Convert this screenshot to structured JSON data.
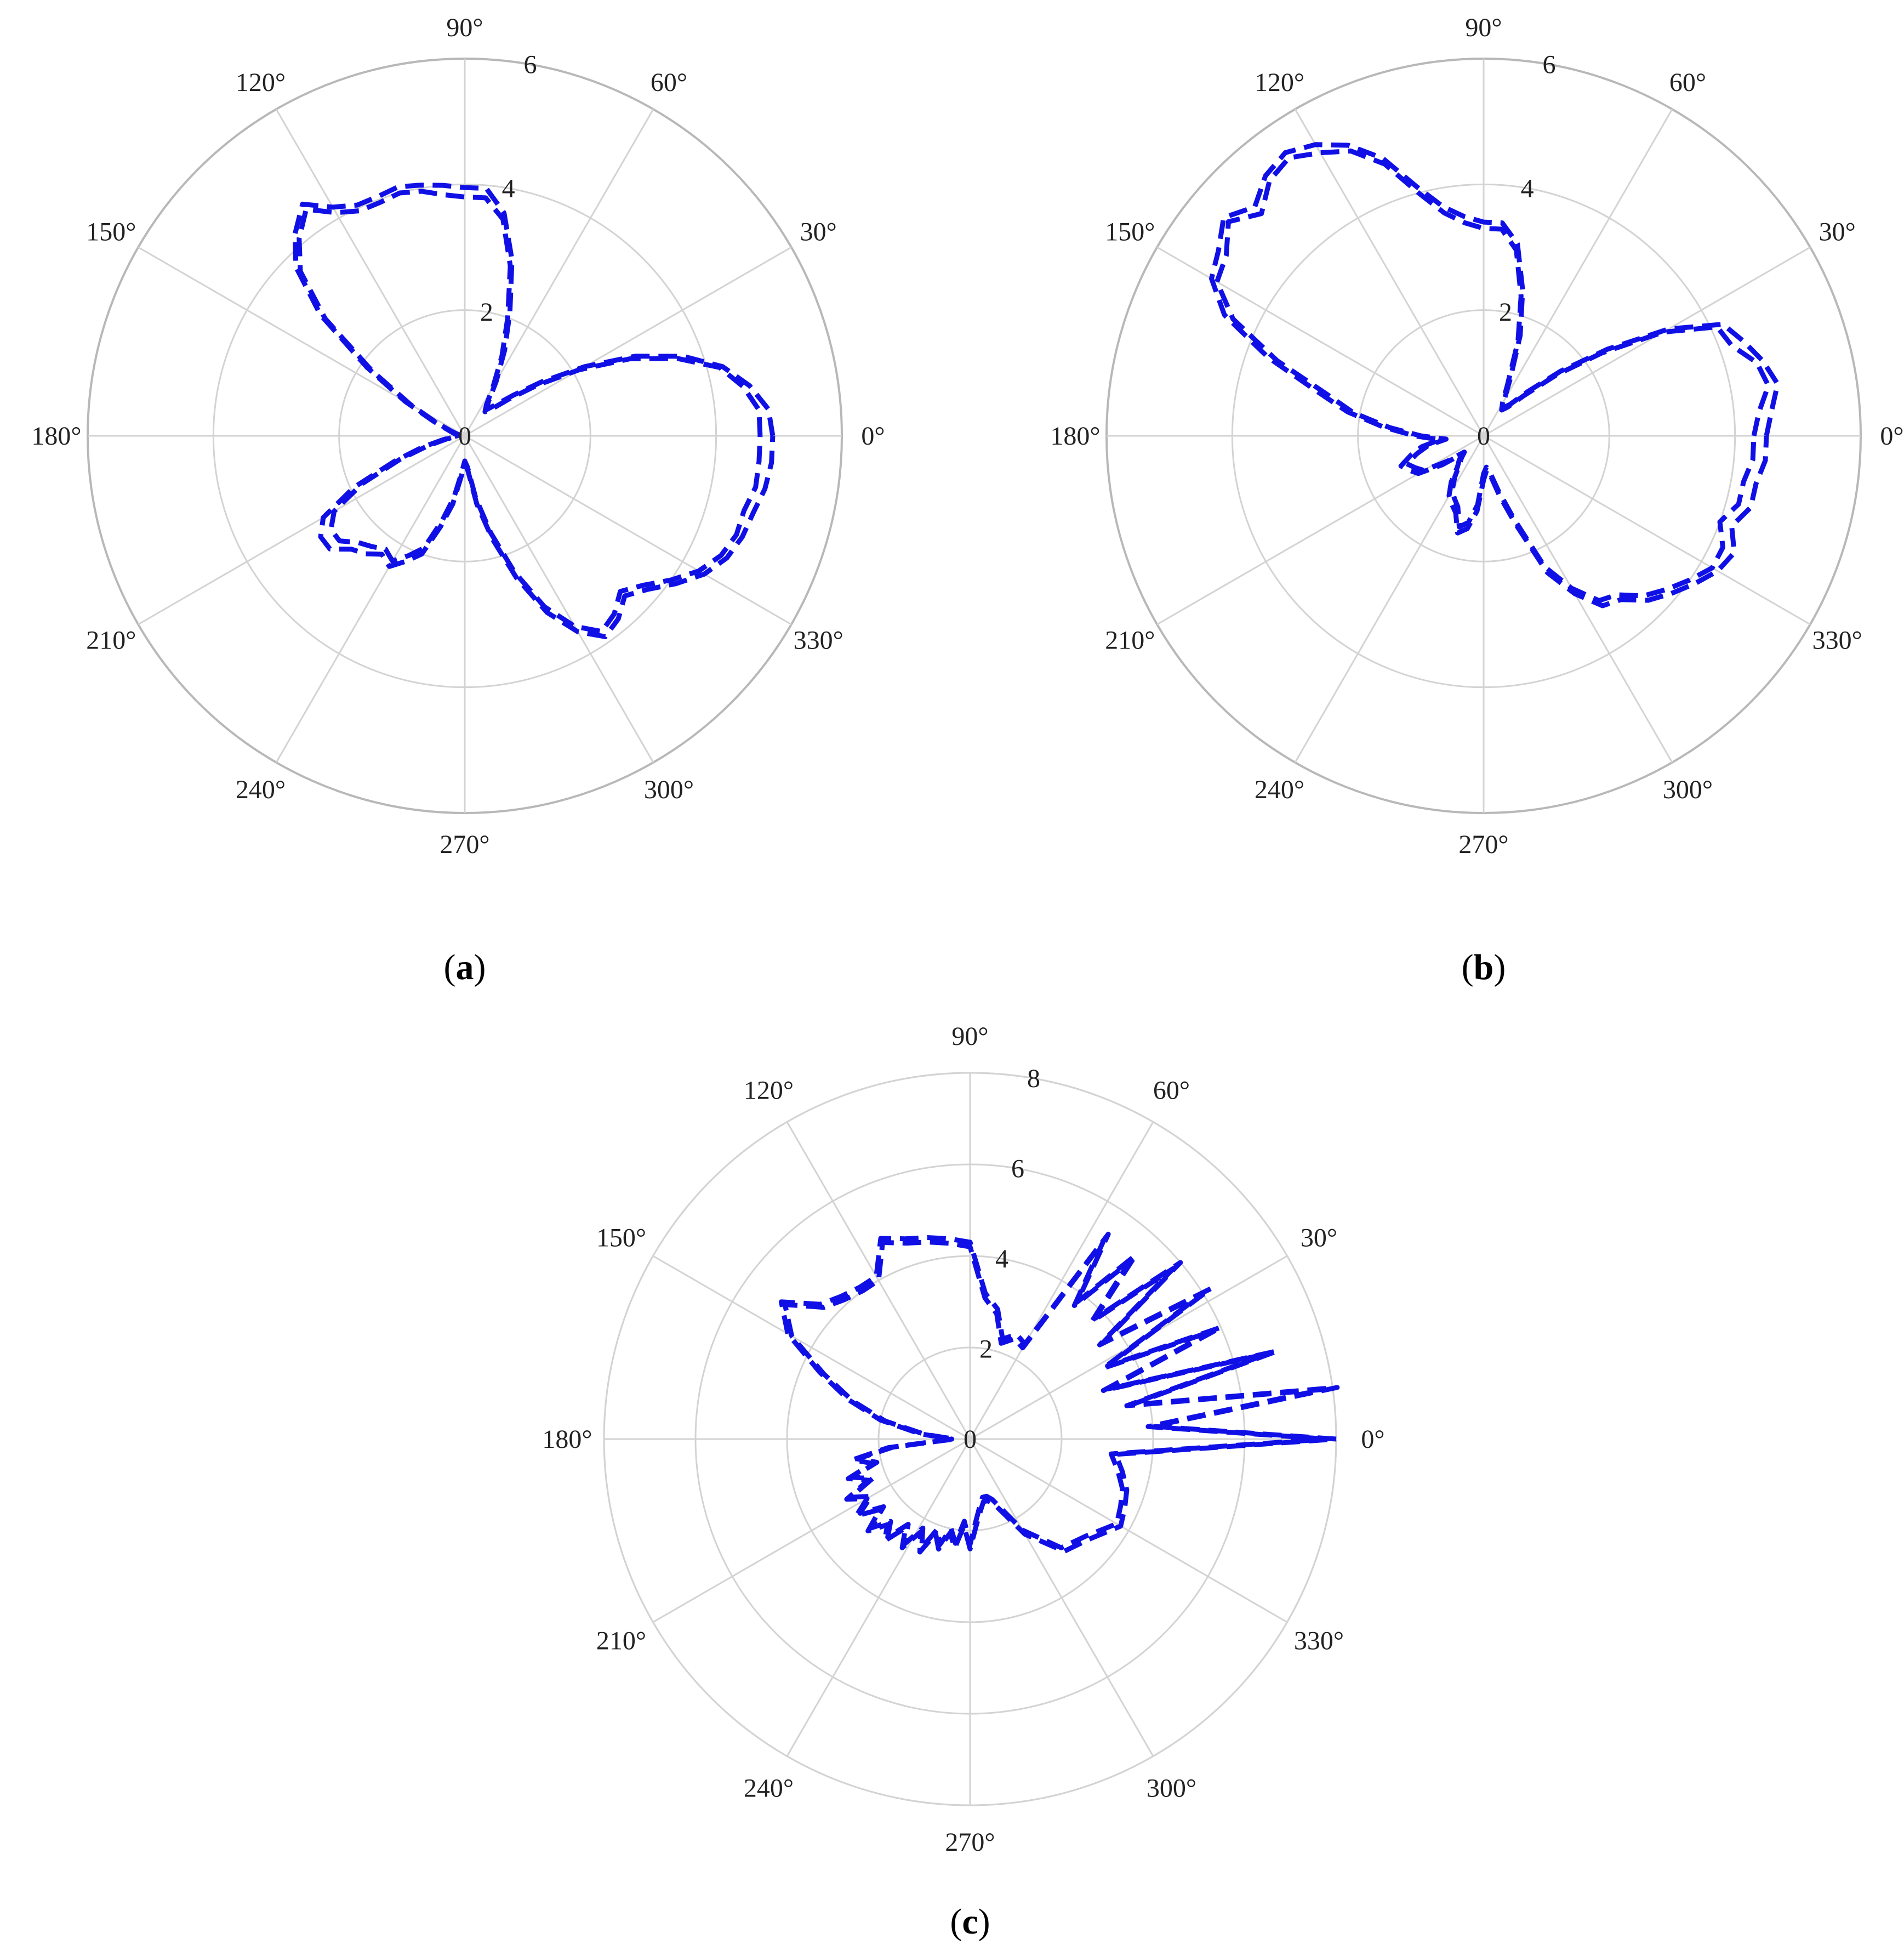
{
  "colors": {
    "series": "#1010e6",
    "grid": "#d3d3d3",
    "outer": "#b8b8b8",
    "text": "#222222"
  },
  "chart_data": [
    {
      "type": "polar-line",
      "panel": "a",
      "caption_open": "(",
      "caption_letter": "a",
      "caption_close": ")",
      "theta_tick_labels": [
        "0°",
        "30°",
        "60°",
        "90°",
        "120°",
        "150°",
        "180°",
        "210°",
        "240°",
        "270°",
        "300°",
        "330°"
      ],
      "r_tick_labels": [
        "0",
        "2",
        "4",
        "6"
      ],
      "rlim": [
        0,
        6
      ],
      "grid": true,
      "series": [
        {
          "theta_deg": [
            0,
            5,
            10,
            15,
            20,
            25,
            30,
            35,
            40,
            45,
            50,
            55,
            60,
            65,
            70,
            75,
            80,
            85,
            90,
            95,
            100,
            105,
            110,
            115,
            120,
            125,
            130,
            135,
            140,
            145,
            150,
            155,
            160,
            165,
            170,
            175,
            180,
            185,
            190,
            195,
            200,
            205,
            210,
            215,
            220,
            225,
            230,
            235,
            240,
            245,
            250,
            255,
            260,
            265,
            270,
            275,
            280,
            285,
            290,
            295,
            300,
            305,
            310,
            315,
            320,
            325,
            330,
            335,
            340,
            345,
            350,
            355,
            360
          ],
          "r": [
            4.7,
            4.7,
            4.5,
            4.2,
            3.6,
            2.9,
            2.1,
            1.4,
            0.9,
            0.6,
            0.5,
            0.6,
            0.9,
            1.4,
            2.0,
            2.8,
            3.5,
            3.8,
            3.8,
            3.85,
            3.95,
            4.0,
            3.95,
            3.95,
            4.1,
            4.4,
            4.1,
            3.7,
            2.9,
            1.8,
            1.0,
            0.5,
            0.25,
            0.15,
            0.1,
            0.1,
            0.1,
            0.15,
            0.3,
            0.6,
            1.1,
            1.8,
            2.4,
            2.6,
            2.6,
            2.4,
            2.3,
            2.2,
            2.3,
            2.1,
            1.9,
            1.4,
            1.0,
            0.6,
            0.4,
            0.5,
            1.0,
            1.6,
            2.3,
            3.0,
            3.5,
            3.8,
            3.7,
            3.5,
            3.7,
            4.0,
            4.3,
            4.5,
            4.6,
            4.6,
            4.7,
            4.7,
            4.7
          ]
        },
        {
          "theta_deg": [
            0,
            5,
            10,
            15,
            20,
            25,
            30,
            35,
            40,
            45,
            50,
            55,
            60,
            65,
            70,
            75,
            80,
            85,
            90,
            95,
            100,
            105,
            110,
            115,
            120,
            125,
            130,
            135,
            140,
            145,
            150,
            155,
            160,
            165,
            170,
            175,
            180,
            185,
            190,
            195,
            200,
            205,
            210,
            215,
            220,
            225,
            230,
            235,
            240,
            245,
            250,
            255,
            260,
            265,
            270,
            275,
            280,
            285,
            290,
            295,
            300,
            305,
            310,
            315,
            320,
            325,
            330,
            335,
            340,
            345,
            350,
            355,
            360
          ],
          "r": [
            4.9,
            4.85,
            4.6,
            4.25,
            3.7,
            3.0,
            2.2,
            1.5,
            1.0,
            0.7,
            0.55,
            0.65,
            1.0,
            1.5,
            2.1,
            2.9,
            3.6,
            3.95,
            3.95,
            4.0,
            4.05,
            4.1,
            4.05,
            4.05,
            4.2,
            4.5,
            4.2,
            3.8,
            3.0,
            1.9,
            1.1,
            0.55,
            0.3,
            0.2,
            0.15,
            0.12,
            0.12,
            0.2,
            0.35,
            0.7,
            1.2,
            1.95,
            2.6,
            2.8,
            2.8,
            2.55,
            2.45,
            2.3,
            2.4,
            2.2,
            2.0,
            1.5,
            1.1,
            0.65,
            0.45,
            0.55,
            1.1,
            1.7,
            2.4,
            3.1,
            3.6,
            3.9,
            3.8,
            3.6,
            3.8,
            4.1,
            4.4,
            4.6,
            4.7,
            4.75,
            4.85,
            4.9,
            4.9
          ]
        }
      ]
    },
    {
      "type": "polar-line",
      "panel": "b",
      "caption_open": "(",
      "caption_letter": "b",
      "caption_close": ")",
      "theta_tick_labels": [
        "0°",
        "30°",
        "60°",
        "90°",
        "120°",
        "150°",
        "180°",
        "210°",
        "240°",
        "270°",
        "300°",
        "330°"
      ],
      "r_tick_labels": [
        "0",
        "2",
        "4",
        "6"
      ],
      "rlim": [
        0,
        6
      ],
      "grid": true,
      "series": [
        {
          "theta_deg": [
            0,
            5,
            10,
            15,
            20,
            25,
            30,
            35,
            40,
            45,
            50,
            55,
            60,
            65,
            70,
            75,
            80,
            85,
            90,
            95,
            100,
            105,
            110,
            115,
            120,
            125,
            130,
            135,
            140,
            145,
            150,
            155,
            160,
            165,
            170,
            175,
            180,
            185,
            190,
            195,
            200,
            205,
            210,
            215,
            220,
            225,
            230,
            235,
            240,
            245,
            250,
            255,
            260,
            265,
            270,
            275,
            280,
            285,
            290,
            295,
            300,
            305,
            310,
            315,
            320,
            325,
            330,
            335,
            340,
            345,
            350,
            355,
            360
          ],
          "r": [
            4.3,
            4.4,
            4.6,
            4.5,
            4.2,
            4.1,
            3.3,
            2.3,
            1.5,
            0.9,
            0.6,
            0.5,
            0.6,
            0.9,
            1.6,
            2.3,
            3.0,
            3.3,
            3.3,
            3.4,
            3.6,
            4.0,
            4.6,
            5.0,
            5.2,
            5.4,
            5.3,
            5.0,
            5.3,
            5.0,
            4.9,
            4.4,
            3.5,
            2.6,
            2.1,
            1.5,
            1.0,
            0.6,
            0.9,
            1.1,
            1.3,
            1.2,
            1.1,
            0.7,
            0.4,
            0.5,
            0.6,
            0.8,
            1.0,
            1.1,
            1.2,
            1.5,
            1.4,
            1.1,
            0.6,
            0.5,
            0.6,
            0.9,
            1.4,
            2.3,
            2.8,
            3.2,
            3.3,
            3.6,
            3.8,
            4.0,
            4.2,
            4.2,
            4.0,
            4.2,
            4.2,
            4.3,
            4.3
          ]
        },
        {
          "theta_deg": [
            0,
            5,
            10,
            15,
            20,
            25,
            30,
            35,
            40,
            45,
            50,
            55,
            60,
            65,
            70,
            75,
            80,
            85,
            90,
            95,
            100,
            105,
            110,
            115,
            120,
            125,
            130,
            135,
            140,
            145,
            150,
            155,
            160,
            165,
            170,
            175,
            180,
            185,
            190,
            195,
            200,
            205,
            210,
            215,
            220,
            225,
            230,
            235,
            240,
            245,
            250,
            255,
            260,
            265,
            270,
            275,
            280,
            285,
            290,
            295,
            300,
            305,
            310,
            315,
            320,
            325,
            330,
            335,
            340,
            345,
            350,
            355,
            360
          ],
          "r": [
            4.5,
            4.6,
            4.75,
            4.6,
            4.4,
            4.2,
            3.4,
            2.4,
            1.6,
            1.0,
            0.65,
            0.55,
            0.65,
            1.0,
            1.7,
            2.4,
            3.1,
            3.4,
            3.4,
            3.5,
            3.7,
            4.1,
            4.7,
            5.1,
            5.35,
            5.5,
            5.4,
            5.15,
            5.4,
            5.15,
            5.0,
            4.55,
            3.65,
            2.75,
            2.2,
            1.6,
            1.1,
            0.7,
            1.0,
            1.2,
            1.4,
            1.3,
            1.2,
            0.8,
            0.45,
            0.55,
            0.65,
            0.9,
            1.1,
            1.2,
            1.3,
            1.6,
            1.5,
            1.2,
            0.7,
            0.55,
            0.65,
            1.0,
            1.5,
            2.4,
            2.9,
            3.3,
            3.4,
            3.7,
            3.9,
            4.1,
            4.3,
            4.4,
            4.2,
            4.4,
            4.4,
            4.5,
            4.5
          ]
        }
      ]
    },
    {
      "type": "polar-line",
      "panel": "c",
      "caption_open": "(",
      "caption_letter": "c",
      "caption_close": ")",
      "theta_tick_labels": [
        "0°",
        "30°",
        "60°",
        "90°",
        "120°",
        "150°",
        "180°",
        "210°",
        "240°",
        "270°",
        "300°",
        "330°"
      ],
      "r_tick_labels": [
        "0",
        "2",
        "4",
        "6",
        "8"
      ],
      "rlim": [
        0,
        8
      ],
      "grid": true,
      "series": [
        {
          "theta_deg": [
            0,
            4,
            8,
            12,
            16,
            20,
            24,
            28,
            32,
            36,
            40,
            44,
            48,
            52,
            56,
            60,
            66,
            72,
            78,
            84,
            90,
            96,
            102,
            108,
            114,
            120,
            126,
            132,
            138,
            144,
            150,
            156,
            162,
            168,
            174,
            180,
            186,
            190,
            194,
            198,
            202,
            206,
            210,
            214,
            218,
            222,
            226,
            230,
            234,
            238,
            242,
            246,
            250,
            254,
            258,
            262,
            266,
            270,
            274,
            278,
            282,
            286,
            290,
            300,
            310,
            320,
            330,
            336,
            342,
            348,
            354,
            360
          ],
          "r": [
            8.0,
            4.0,
            8.1,
            3.6,
            7.0,
            3.2,
            6.0,
            3.4,
            6.2,
            3.6,
            6.0,
            3.8,
            5.4,
            3.8,
            5.4,
            2.4,
            2.5,
            2.3,
            2.9,
            3.2,
            4.3,
            4.4,
            4.5,
            4.6,
            4.8,
            4.1,
            4.1,
            4.2,
            4.4,
            5.1,
            4.6,
            3.6,
            2.8,
            2.0,
            1.1,
            0.4,
            1.8,
            2.6,
            2.2,
            2.8,
            2.4,
            3.0,
            2.6,
            3.0,
            2.5,
            3.0,
            2.6,
            2.9,
            2.4,
            2.8,
            2.3,
            2.7,
            2.2,
            2.5,
            2.1,
            2.4,
            1.9,
            2.4,
            1.9,
            1.6,
            1.4,
            1.4,
            1.5,
            2.4,
            3.2,
            3.4,
            3.8,
            3.7,
            3.6,
            3.4,
            3.2,
            8.0
          ]
        },
        {
          "theta_deg": [
            0,
            4,
            8,
            12,
            16,
            20,
            24,
            28,
            32,
            36,
            40,
            44,
            48,
            52,
            56,
            60,
            66,
            72,
            78,
            84,
            90,
            96,
            102,
            108,
            114,
            120,
            126,
            132,
            138,
            144,
            150,
            156,
            162,
            168,
            174,
            180,
            186,
            190,
            194,
            198,
            202,
            206,
            210,
            214,
            218,
            222,
            226,
            230,
            234,
            238,
            242,
            246,
            250,
            254,
            258,
            262,
            266,
            270,
            274,
            278,
            282,
            286,
            290,
            300,
            310,
            320,
            330,
            336,
            342,
            348,
            354,
            360
          ],
          "r": [
            7.8,
            3.9,
            7.8,
            3.5,
            6.8,
            3.1,
            5.8,
            3.3,
            6.0,
            3.5,
            5.8,
            3.7,
            5.2,
            3.7,
            5.2,
            2.3,
            2.4,
            2.2,
            2.8,
            3.1,
            4.2,
            4.3,
            4.4,
            4.5,
            4.7,
            4.0,
            4.0,
            4.1,
            4.3,
            5.0,
            4.5,
            3.5,
            2.7,
            1.9,
            1.0,
            0.35,
            1.7,
            2.5,
            2.1,
            2.7,
            2.3,
            2.9,
            2.5,
            2.9,
            2.4,
            2.9,
            2.5,
            2.8,
            2.3,
            2.7,
            2.2,
            2.6,
            2.1,
            2.4,
            2.0,
            2.3,
            1.8,
            2.3,
            1.8,
            1.5,
            1.3,
            1.3,
            1.4,
            2.3,
            3.1,
            3.3,
            3.7,
            3.6,
            3.5,
            3.3,
            3.1,
            7.8
          ]
        }
      ]
    }
  ]
}
